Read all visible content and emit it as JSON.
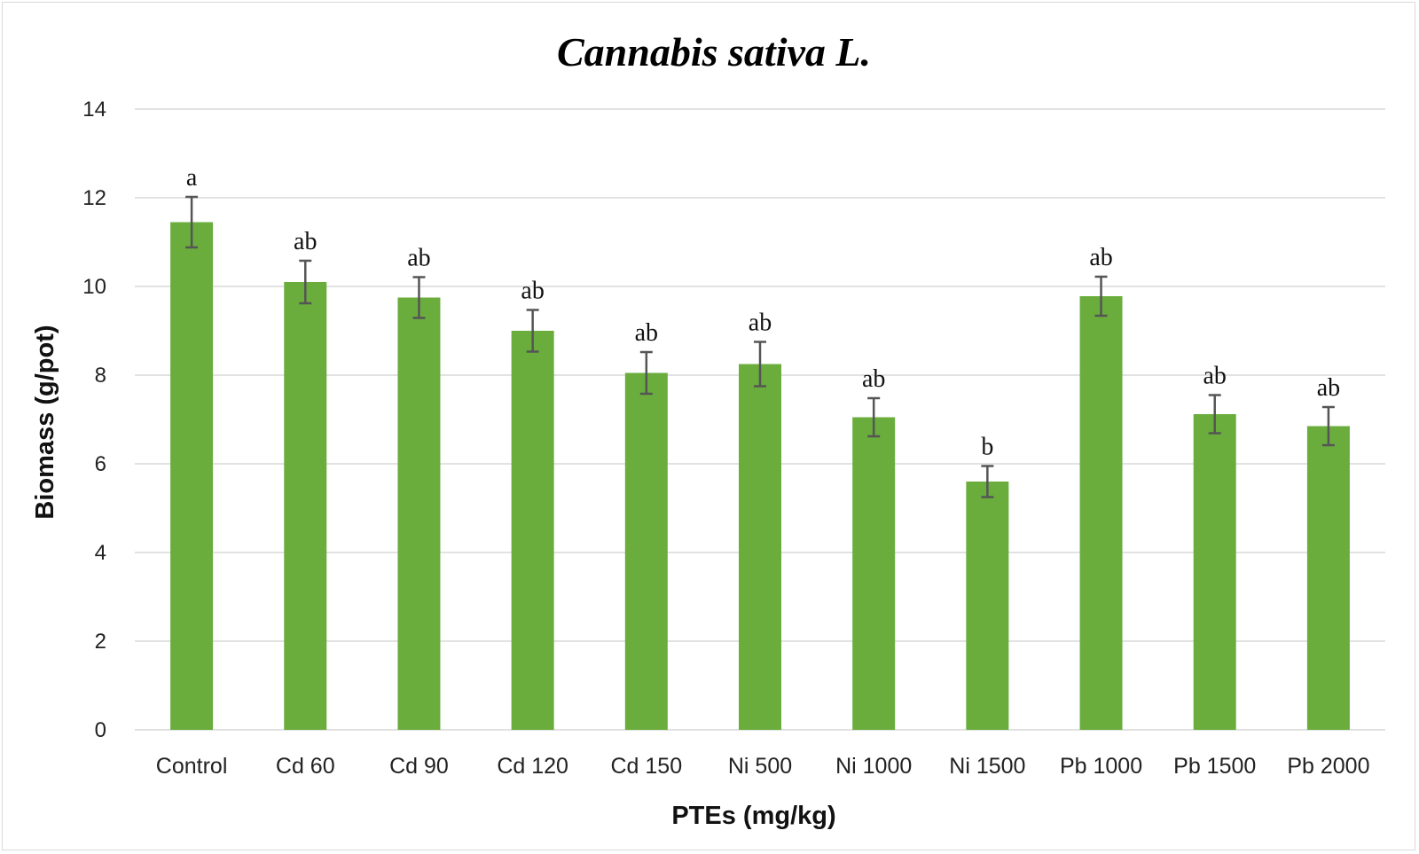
{
  "chart_data": {
    "type": "bar",
    "title": "Cannabis sativa L.",
    "xlabel": "PTEs (mg/kg)",
    "ylabel": "Biomass (g/pot)",
    "ylim": [
      0,
      14
    ],
    "yticks": [
      0,
      2,
      4,
      6,
      8,
      10,
      12,
      14
    ],
    "grid": true,
    "categories": [
      "Control",
      "Cd 60",
      "Cd 90",
      "Cd 120",
      "Cd 150",
      "Ni 500",
      "Ni 1000",
      "Ni 1500",
      "Pb 1000",
      "Pb 1500",
      "Pb 2000"
    ],
    "values": [
      11.45,
      10.1,
      9.75,
      9.0,
      8.05,
      8.25,
      7.05,
      5.6,
      9.78,
      7.12,
      6.85
    ],
    "errors": [
      0.57,
      0.48,
      0.46,
      0.47,
      0.47,
      0.5,
      0.43,
      0.35,
      0.44,
      0.43,
      0.43
    ],
    "significance_letters": [
      "a",
      "ab",
      "ab",
      "ab",
      "ab",
      "ab",
      "ab",
      "b",
      "ab",
      "ab",
      "ab"
    ],
    "colors": {
      "bar": "#6aad3d",
      "error_bar": "#555555",
      "grid": "#d9d9d9"
    }
  }
}
